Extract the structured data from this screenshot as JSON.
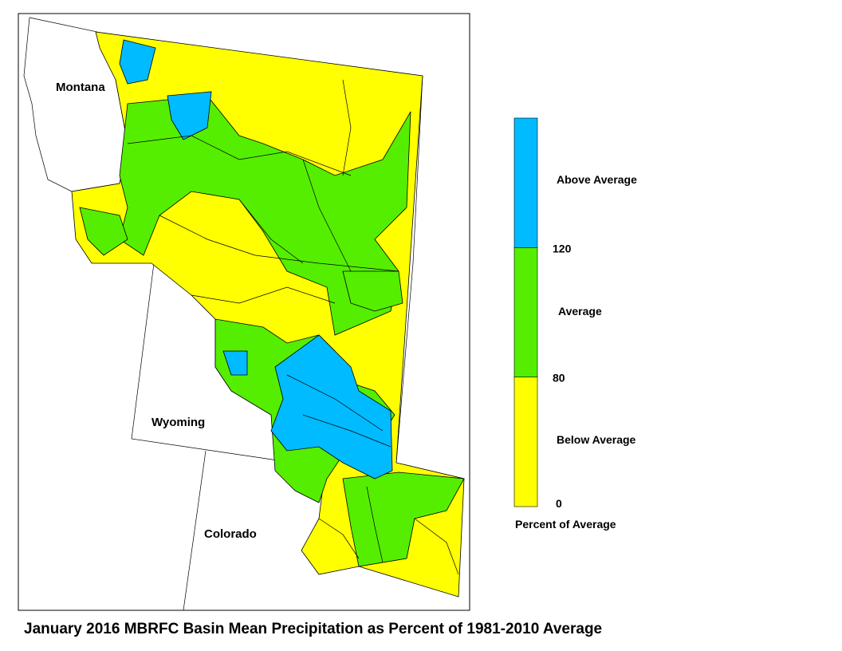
{
  "title": "January 2016 MBRFC Basin Mean Precipitation as Percent of 1981-2010 Average",
  "states": [
    "Montana",
    "Wyoming",
    "Colorado"
  ],
  "legend": {
    "title": "Percent of Average",
    "classes": [
      {
        "label": "Below Average",
        "color": "#ffff00"
      },
      {
        "label": "Average",
        "color": "#55ee00"
      },
      {
        "label": "Above Average",
        "color": "#00bbff"
      }
    ],
    "ticks": [
      0,
      80,
      120
    ]
  }
}
